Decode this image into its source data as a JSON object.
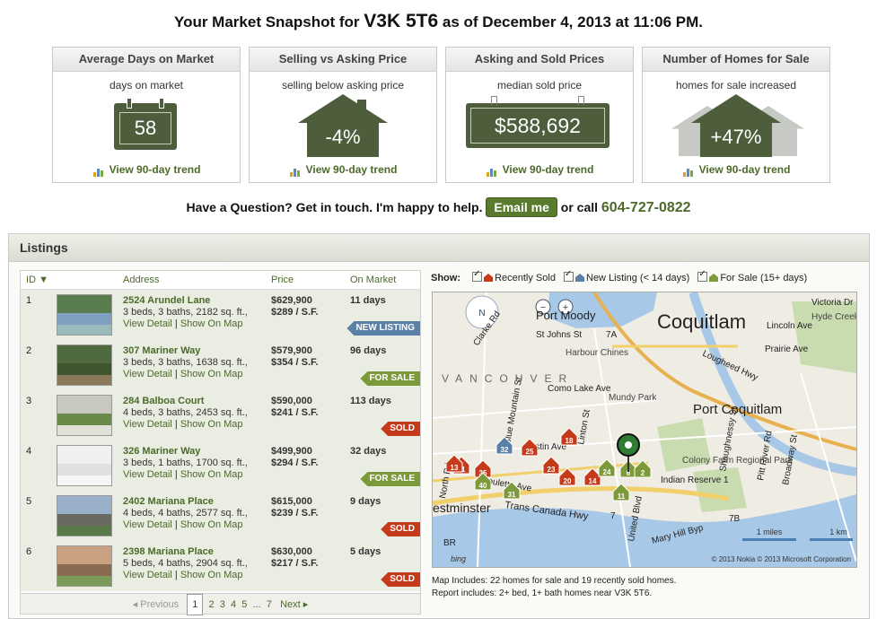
{
  "headline": {
    "prefix": "Your Market Snapshot for",
    "postal_code": "V3K 5T6",
    "suffix": "as of December 4, 2013 at 11:06 PM."
  },
  "cards": [
    {
      "title": "Average Days on Market",
      "subtitle": "days on market",
      "value": "58",
      "trend": "View 90-day trend"
    },
    {
      "title": "Selling vs Asking Price",
      "subtitle": "selling below asking price",
      "value": "-4%",
      "trend": "View 90-day trend"
    },
    {
      "title": "Asking and Sold Prices",
      "subtitle": "median sold price",
      "value": "$588,692",
      "trend": "View 90-day trend"
    },
    {
      "title": "Number of Homes for Sale",
      "subtitle": "homes for sale increased",
      "value": "+47%",
      "trend": "View 90-day trend"
    }
  ],
  "contact": {
    "text": "Have a Question? Get in touch. I'm happy to help.",
    "email_label": "Email me",
    "or_call": "or call",
    "phone": "604-727-0822"
  },
  "listings": {
    "title": "Listings",
    "columns": {
      "id": "ID",
      "address": "Address",
      "price": "Price",
      "on_market": "On Market"
    },
    "view_detail": "View Detail",
    "show_on_map": "Show On Map",
    "rows": [
      {
        "id": "1",
        "address": "2524 Arundel Lane",
        "details": "3 beds, 3 baths, 2182 sq. ft.,",
        "price": "$629,900",
        "per_sf": "$289 / S.F.",
        "days": "11 days",
        "badge": "NEW LISTING",
        "badge_color": "#5b80a8"
      },
      {
        "id": "2",
        "address": "307 Mariner Way",
        "details": "3 beds, 3 baths, 1638 sq. ft.,",
        "price": "$579,900",
        "per_sf": "$354 / S.F.",
        "days": "96 days",
        "badge": "FOR SALE",
        "badge_color": "#7c9a3a"
      },
      {
        "id": "3",
        "address": "284 Balboa Court",
        "details": "4 beds, 3 baths, 2453 sq. ft.,",
        "price": "$590,000",
        "per_sf": "$241 / S.F.",
        "days": "113 days",
        "badge": "SOLD",
        "badge_color": "#c53a1a"
      },
      {
        "id": "4",
        "address": "326 Mariner Way",
        "details": "3 beds, 1 baths, 1700 sq. ft.,",
        "price": "$499,900",
        "per_sf": "$294 / S.F.",
        "days": "32 days",
        "badge": "FOR SALE",
        "badge_color": "#7c9a3a"
      },
      {
        "id": "5",
        "address": "2402 Mariana Place",
        "details": "4 beds, 4 baths, 2577 sq. ft.,",
        "price": "$615,000",
        "per_sf": "$239 / S.F.",
        "days": "9 days",
        "badge": "SOLD",
        "badge_color": "#c53a1a"
      },
      {
        "id": "6",
        "address": "2398 Mariana Place",
        "details": "5 beds, 4 baths, 2904 sq. ft.,",
        "price": "$630,000",
        "per_sf": "$217 / S.F.",
        "days": "5 days",
        "badge": "SOLD",
        "badge_color": "#c53a1a"
      }
    ],
    "pager": {
      "previous": "Previous",
      "pages": [
        "1",
        "2",
        "3",
        "4",
        "5",
        "...",
        "7"
      ],
      "next": "Next"
    }
  },
  "map_filters": {
    "label": "Show:",
    "recently_sold": "Recently  Sold",
    "new_listing": "New Listing (< 14 days)",
    "for_sale": "For Sale (15+ days)"
  },
  "map": {
    "places": [
      "Port Moody",
      "Coquitlam",
      "Port Coquitlam",
      "Victoria Dr",
      "Hyde Creek Nature Park",
      "Lincoln Ave",
      "Prairie Ave",
      "Lougheed Hwy",
      "St Johns St",
      "Clarke Rd",
      "Harbour Chines",
      "Como Lake Ave",
      "Mundy Park",
      "Colony Farm Regional Park",
      "Indian Reserve 1",
      "Trans Canada Hwy",
      "estminster",
      "Mary Hill Byp",
      "Shaughnessy St",
      "Pitt River Rd",
      "Broadway St",
      "North Rd",
      "Linton St",
      "Blue Mountain St",
      "Austin Ave",
      "Foulette Ave",
      "United Blvd",
      "VANCOUVER",
      "7A",
      "7",
      "7B",
      "BR"
    ],
    "markers": [
      "32",
      "25",
      "18",
      "41",
      "13",
      "35",
      "40",
      "6",
      "23",
      "20",
      "14",
      "31",
      "24",
      "2",
      "11"
    ],
    "scale_miles": "1 miles",
    "scale_km": "1 km",
    "copyright": "© 2013 Nokia  © 2013 Microsoft Corporation",
    "bing": "bing"
  },
  "map_notes": {
    "includes": "Map Includes: 22 homes for sale and 19 recently sold homes.",
    "report": "Report includes: 2+ bed, 1+ bath homes near V3K 5T6."
  },
  "colors": {
    "accent": "#4c6a2a",
    "sold": "#c53a1a",
    "new": "#5b80a8",
    "for_sale": "#7c9a3a",
    "badge_dark": "#4e5e3c"
  }
}
